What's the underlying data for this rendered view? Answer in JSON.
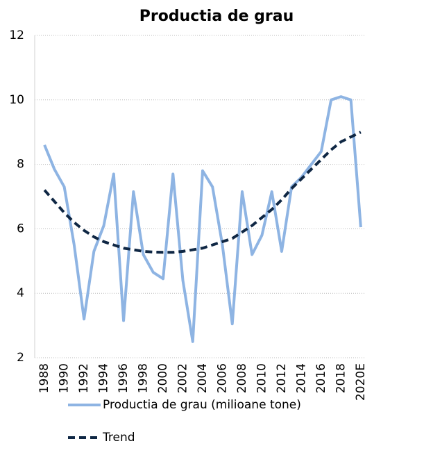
{
  "chart_data": {
    "type": "line",
    "title": "Productia de grau",
    "categories": [
      "1988",
      null,
      "1990",
      null,
      "1992",
      null,
      "1994",
      null,
      "1996",
      null,
      "1998",
      null,
      "2000",
      null,
      "2002",
      null,
      "2004",
      null,
      "2006",
      null,
      "2008",
      null,
      "2010",
      null,
      "2012",
      null,
      "2014",
      null,
      "2016",
      null,
      "2018",
      null,
      "2020E"
    ],
    "series": [
      {
        "name": "Productia de grau (milioane tone)",
        "color": "#8eb4e3",
        "dash": false,
        "values": [
          8.6,
          7.85,
          7.3,
          5.5,
          3.2,
          5.3,
          6.1,
          7.7,
          3.15,
          7.15,
          5.2,
          4.65,
          4.45,
          7.7,
          4.4,
          2.5,
          7.8,
          7.3,
          5.5,
          3.05,
          7.15,
          5.2,
          5.8,
          7.15,
          5.3,
          7.3,
          7.6,
          8.0,
          8.4,
          10.0,
          10.1,
          10.0,
          6.05
        ]
      },
      {
        "name": "Trend",
        "color": "#0f2744",
        "dash": true,
        "values": [
          7.2,
          6.85,
          6.5,
          6.2,
          5.95,
          5.75,
          5.6,
          5.5,
          5.4,
          5.35,
          5.3,
          5.28,
          5.27,
          5.27,
          5.3,
          5.35,
          5.4,
          5.5,
          5.6,
          5.7,
          5.9,
          6.1,
          6.35,
          6.6,
          6.9,
          7.25,
          7.55,
          7.85,
          8.15,
          8.45,
          8.7,
          8.85,
          9.0
        ]
      }
    ],
    "ylim": [
      2,
      12
    ],
    "yticks": [
      2,
      4,
      6,
      8,
      10,
      12
    ],
    "grid": true
  }
}
